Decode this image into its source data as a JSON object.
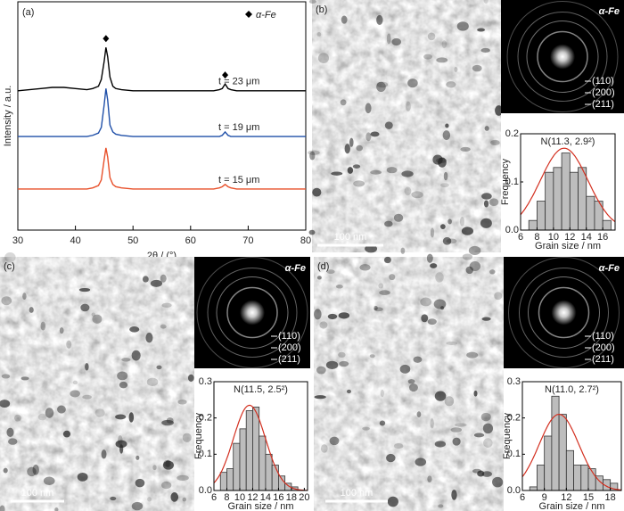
{
  "chart_data": [
    {
      "type": "line",
      "panel_label": "(a)",
      "xlabel": "2θ / (°)",
      "ylabel": "Intensity / a.u.",
      "legend_label": "α-Fe",
      "xlim": [
        30,
        80
      ],
      "xticks": [
        30,
        40,
        50,
        60,
        70,
        80
      ],
      "ylim": [
        0,
        100
      ],
      "peak_marker_x": [
        45.3,
        66
      ],
      "x": [
        30,
        32,
        34,
        36,
        38,
        40,
        42,
        43,
        44,
        44.5,
        45,
        45.3,
        45.6,
        46,
        46.5,
        47,
        48,
        50,
        52,
        54,
        56,
        58,
        60,
        62,
        64,
        65,
        65.5,
        66,
        66.5,
        67,
        68,
        70,
        72,
        74,
        76,
        78,
        80
      ],
      "series": [
        {
          "name": "t = 23 μm",
          "color": "#000000",
          "values": [
            61,
            61.5,
            62,
            62.5,
            62.5,
            62,
            61.5,
            62,
            63,
            66,
            74,
            80,
            76,
            67,
            63,
            62,
            61.5,
            61,
            61,
            61,
            61,
            61,
            61,
            61,
            61,
            61.5,
            62,
            64,
            62,
            61.5,
            61,
            61,
            61,
            61,
            61,
            61,
            61
          ]
        },
        {
          "name": "t = 19 μm",
          "color": "#1f4fa8",
          "values": [
            41,
            41,
            41,
            41,
            41,
            41,
            41,
            41.5,
            42.5,
            45,
            55,
            62,
            57,
            46,
            43,
            42,
            41.5,
            41,
            41,
            41,
            41,
            41,
            41,
            41,
            41,
            41,
            41.5,
            43,
            41.5,
            41,
            41,
            41,
            41,
            41,
            41,
            41,
            41
          ]
        },
        {
          "name": "t = 15 μm",
          "color": "#e8502a",
          "values": [
            18,
            18,
            18,
            18,
            18,
            18,
            18,
            18.5,
            19.5,
            22,
            31,
            36,
            32,
            23,
            20,
            19,
            18.5,
            18,
            18,
            18,
            18,
            18,
            18,
            18,
            18,
            18.5,
            19,
            20,
            19,
            18.5,
            18,
            18,
            18,
            18,
            18,
            18,
            18
          ]
        }
      ]
    },
    {
      "type": "histogram",
      "panel_label": "(b)",
      "scale_bar": "100 nm",
      "saed_title": "α-Fe",
      "saed_rings": [
        "(110)",
        "(200)",
        "(211)"
      ],
      "annotation": "N(11.3, 2.9²)",
      "xlabel": "Grain size / nm",
      "ylabel": "Frequency",
      "xlim": [
        6,
        17.5
      ],
      "xticks": [
        6,
        8,
        10,
        12,
        14,
        16
      ],
      "ylim": [
        0,
        0.2
      ],
      "yticks": [
        {
          "value": 0,
          "label": "0.0"
        },
        0.1,
        0.2
      ],
      "bins": [
        7,
        8,
        9,
        10,
        11,
        12,
        13,
        14,
        15,
        16,
        17
      ],
      "values": [
        0.02,
        0.06,
        0.12,
        0.13,
        0.16,
        0.12,
        0.13,
        0.07,
        0.06,
        0.02
      ],
      "color": "#bdbdbd",
      "fit": {
        "mean": 11.3,
        "sd": 2.9,
        "peak": 0.17,
        "color": "#d32f1f"
      }
    },
    {
      "type": "histogram",
      "panel_label": "(c)",
      "scale_bar": "100 nm",
      "saed_title": "α-Fe",
      "saed_rings": [
        "(110)",
        "(200)",
        "(211)"
      ],
      "annotation": "N(11.5, 2.5²)",
      "xlabel": "Grain size / nm",
      "ylabel": "Frequency",
      "xlim": [
        6,
        20.5
      ],
      "xticks": [
        6,
        8,
        10,
        12,
        14,
        16,
        18,
        20
      ],
      "ylim": [
        0,
        0.3
      ],
      "yticks": [
        {
          "value": 0,
          "label": "0.0"
        },
        0.1,
        0.2,
        0.3
      ],
      "bins": [
        7,
        8,
        9,
        10,
        11,
        12,
        13,
        14,
        15,
        16,
        17,
        18,
        19
      ],
      "values": [
        0.05,
        0.06,
        0.13,
        0.17,
        0.22,
        0.23,
        0.15,
        0.1,
        0.07,
        0.04,
        0.02,
        0.01
      ],
      "color": "#bdbdbd",
      "fit": {
        "mean": 11.5,
        "sd": 2.5,
        "peak": 0.235,
        "color": "#d32f1f"
      }
    },
    {
      "type": "histogram",
      "panel_label": "(d)",
      "scale_bar": "100 nm",
      "saed_title": "α-Fe",
      "saed_rings": [
        "(110)",
        "(200)",
        "(211)"
      ],
      "annotation": "N(11.0, 2.7²)",
      "xlabel": "Grain size / nm",
      "ylabel": "Frequency",
      "xlim": [
        6,
        19.5
      ],
      "xticks": [
        6,
        9,
        12,
        15,
        18
      ],
      "ylim": [
        0,
        0.3
      ],
      "yticks": [
        {
          "value": 0,
          "label": "0.0"
        },
        0.1,
        0.2,
        0.3
      ],
      "bins": [
        7,
        8,
        9,
        10,
        11,
        12,
        13,
        14,
        15,
        16,
        17,
        18,
        19
      ],
      "values": [
        0.01,
        0.07,
        0.15,
        0.26,
        0.21,
        0.11,
        0.07,
        0.07,
        0.06,
        0.04,
        0.03,
        0.02
      ],
      "color": "#bdbdbd",
      "fit": {
        "mean": 11.0,
        "sd": 2.7,
        "peak": 0.21,
        "color": "#d32f1f"
      }
    }
  ]
}
